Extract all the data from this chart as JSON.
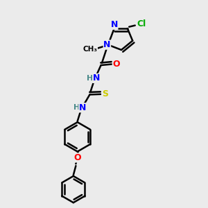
{
  "bg_color": "#ebebeb",
  "bond_color": "#000000",
  "bond_width": 1.8,
  "atom_colors": {
    "N": "#0000ff",
    "O": "#ff0000",
    "S": "#cccc00",
    "Cl": "#00aa00",
    "C": "#000000",
    "H": "#4a8a8a"
  },
  "font_size": 9,
  "fig_size": [
    3.0,
    3.0
  ],
  "dpi": 100,
  "xlim": [
    0,
    10
  ],
  "ylim": [
    0,
    10
  ]
}
